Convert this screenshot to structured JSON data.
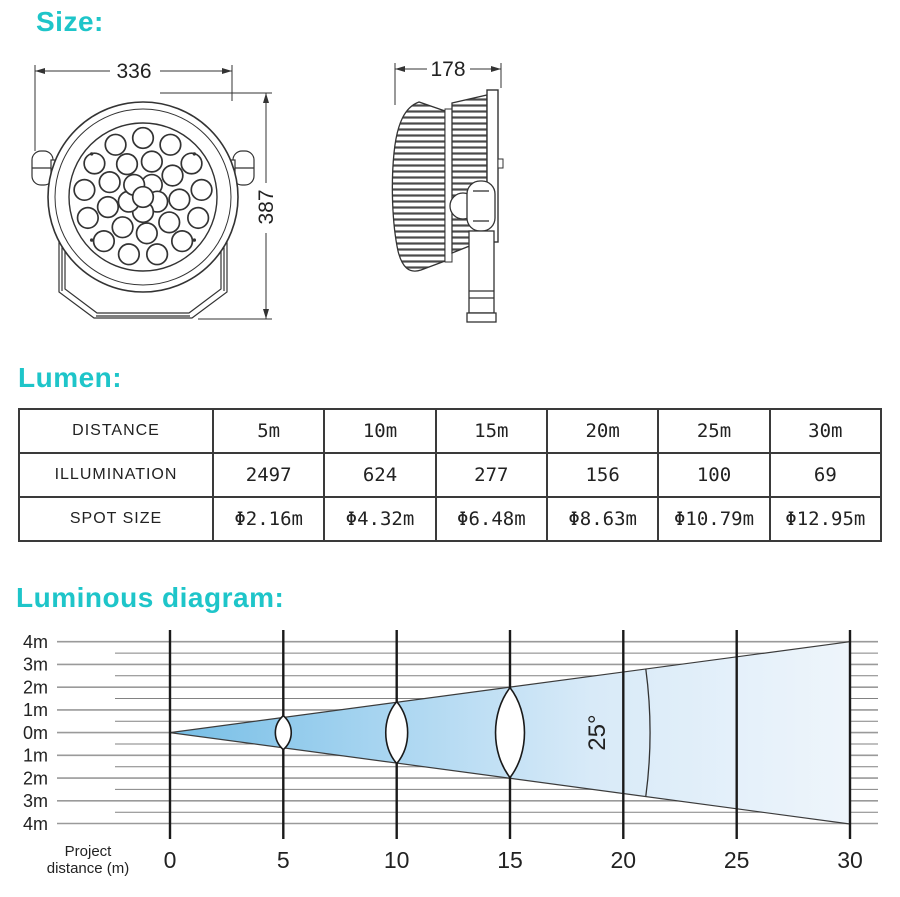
{
  "colors": {
    "accent_heading": "#1ec5c9",
    "beam_gradient_start": "#79c0e7",
    "beam_gradient_end": "#eef5fb",
    "table_border": "#3a3a3a",
    "drawing_line": "#333333"
  },
  "sections": {
    "size": {
      "heading": "Size:",
      "front_view": {
        "width_dim": "336",
        "height_dim": "387"
      },
      "side_view": {
        "depth_dim": "178"
      }
    },
    "lumen": {
      "heading": "Lumen:",
      "table": {
        "rows": [
          {
            "label": "DISTANCE",
            "values": [
              "5m",
              "10m",
              "15m",
              "20m",
              "25m",
              "30m"
            ]
          },
          {
            "label": "ILLUMINATION",
            "values": [
              "2497",
              "624",
              "277",
              "156",
              "100",
              "69"
            ]
          },
          {
            "label": "SPOT SIZE",
            "values": [
              "Φ2.16m",
              "Φ4.32m",
              "Φ6.48m",
              "Φ8.63m",
              "Φ10.79m",
              "Φ12.95m"
            ]
          }
        ]
      }
    },
    "luminous": {
      "heading": "Luminous diagram:"
    }
  },
  "chart_data": {
    "type": "area",
    "title": "Luminous diagram",
    "beam_angle_label": "25°",
    "beam_angle_deg": 25,
    "x_ticks": [
      "0",
      "5",
      "10",
      "15",
      "20",
      "25",
      "30"
    ],
    "y_ticks": [
      "4m",
      "3m",
      "2m",
      "1m",
      "0m",
      "1m",
      "2m",
      "3m",
      "4m"
    ],
    "xlabel_line1": "Project",
    "xlabel_line2": "distance (m)",
    "x_range_m": [
      0,
      30
    ],
    "y_range_m": [
      -4,
      4
    ],
    "beam": {
      "origin_m": [
        0,
        0
      ],
      "half_height_at_30m_m": 4
    },
    "lens_positions_m": [
      5,
      10,
      15
    ],
    "grid": "on",
    "related_spot_size_m": [
      2.16,
      4.32,
      6.48,
      8.63,
      10.79,
      12.95
    ]
  }
}
